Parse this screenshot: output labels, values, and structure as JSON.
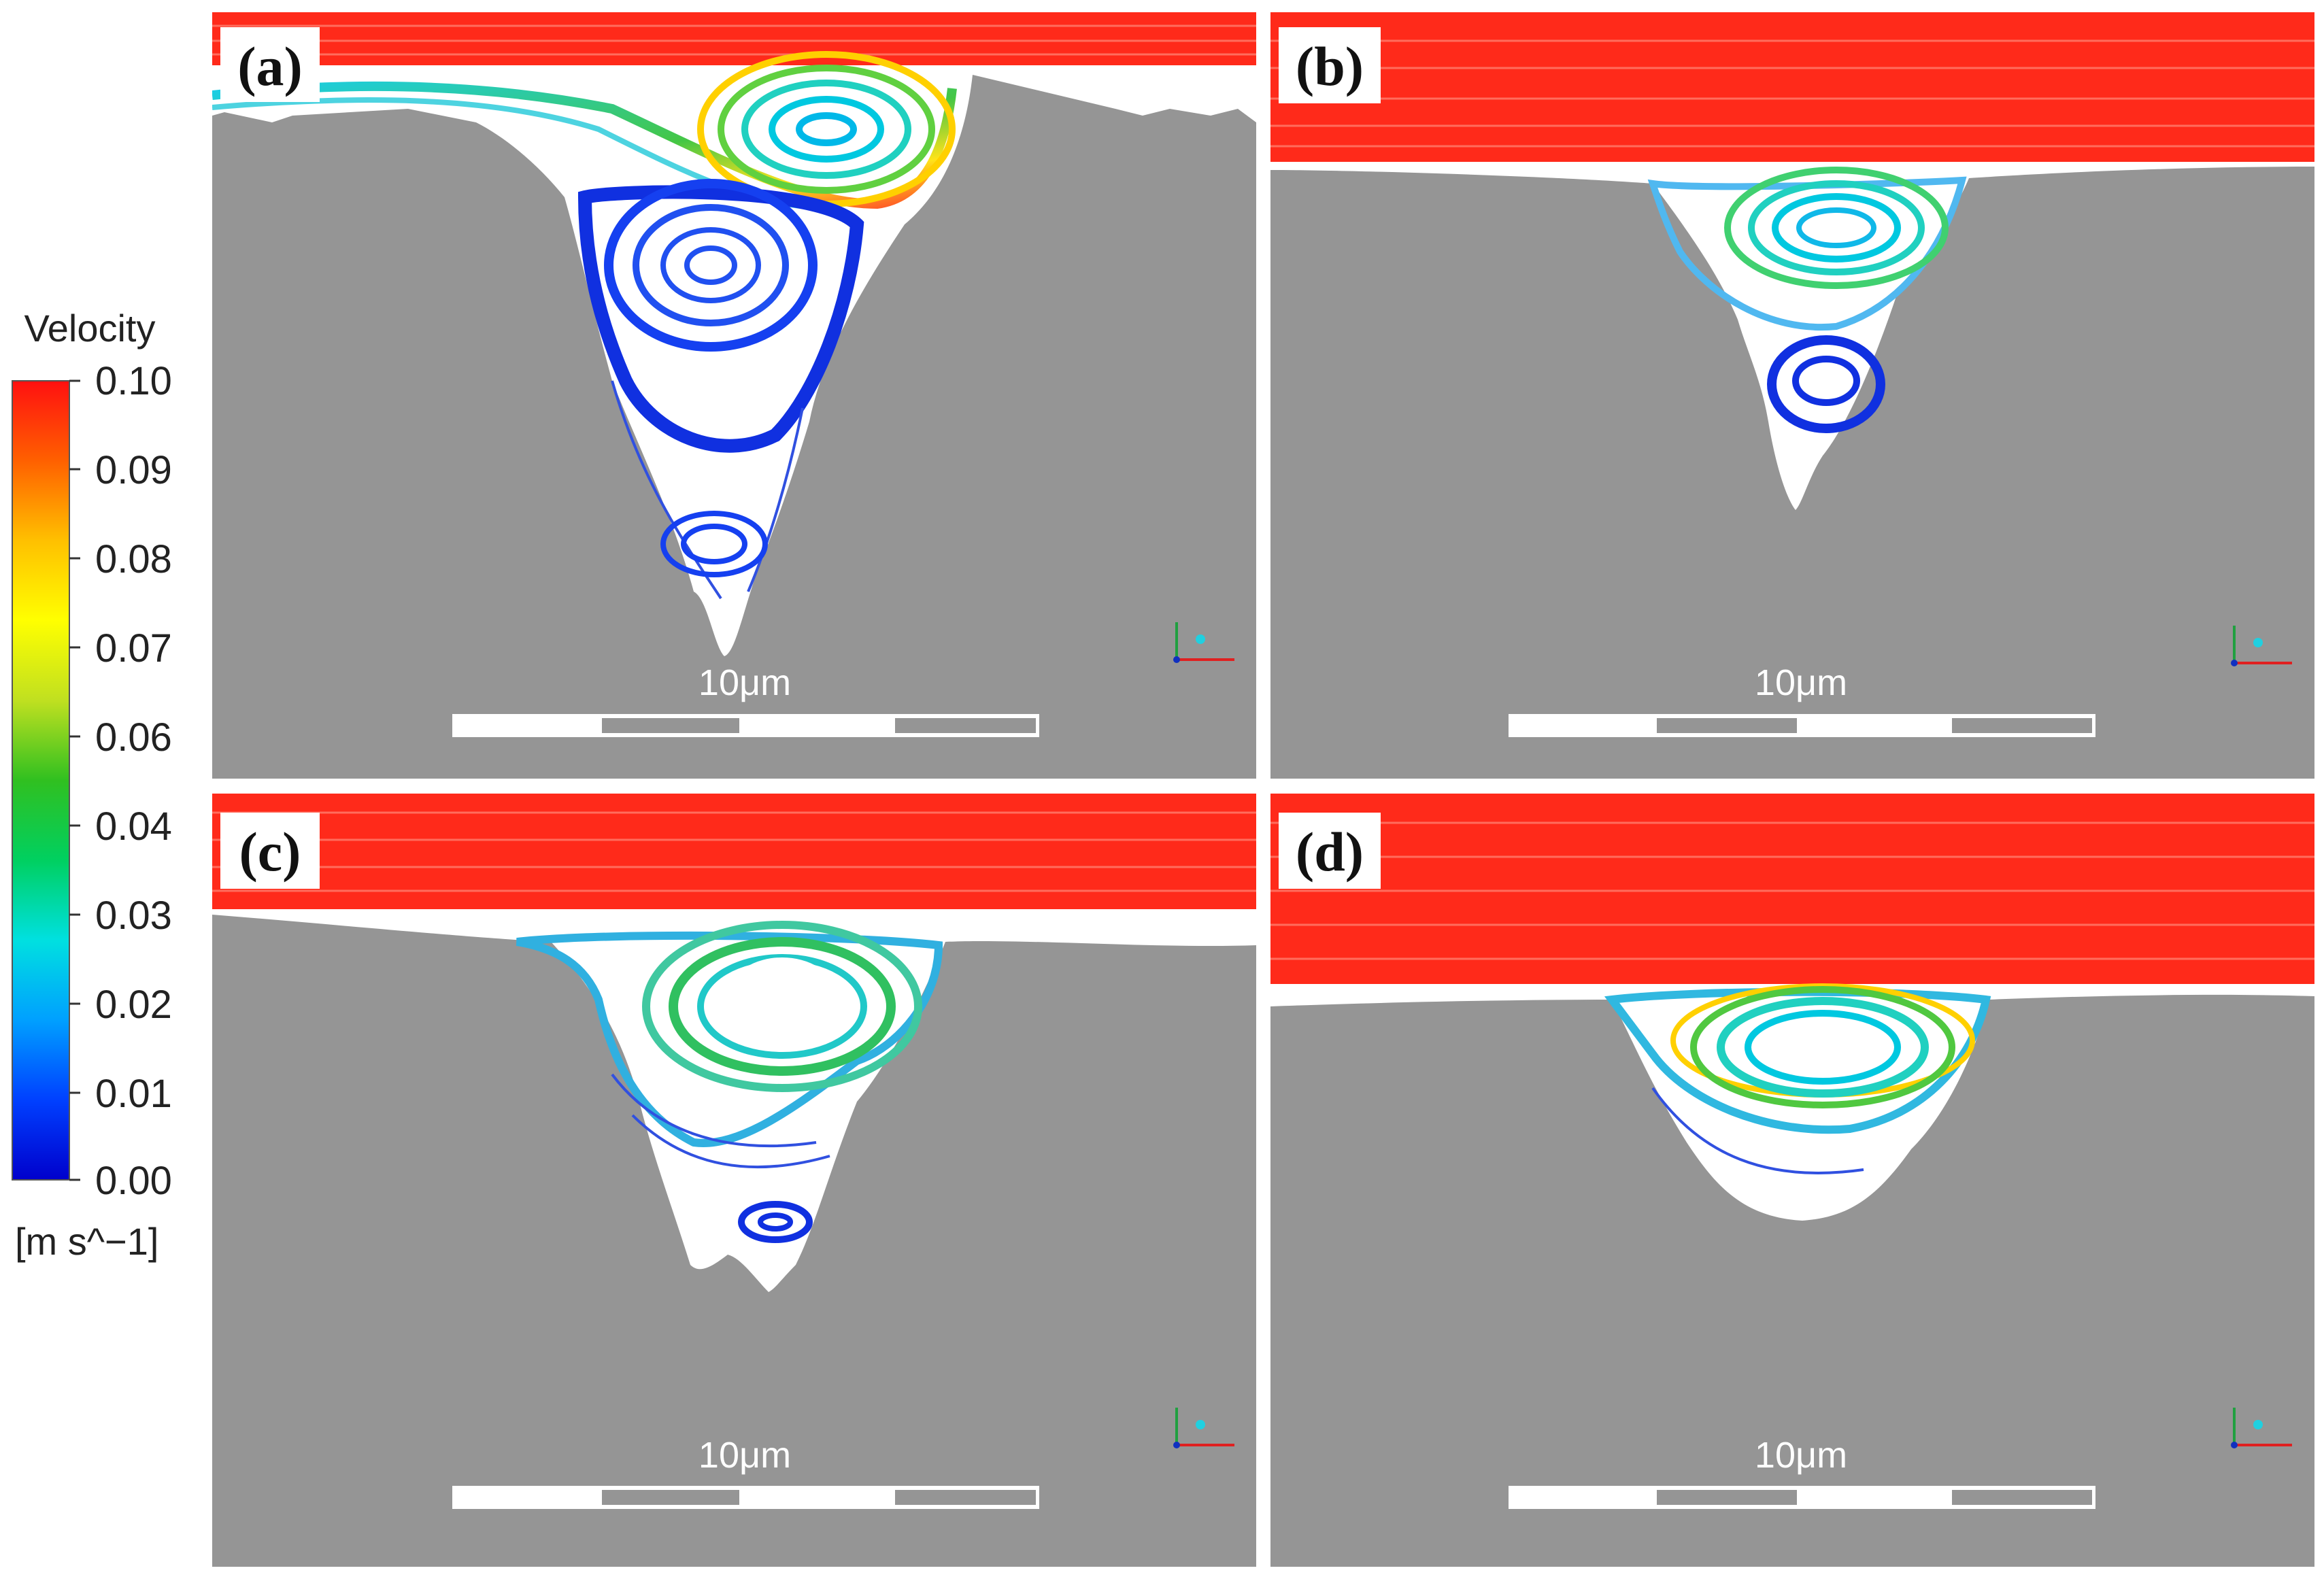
{
  "colorbar": {
    "title": "Velocity",
    "unit": "[m s^−1]",
    "ticks": [
      "0.10",
      "0.09",
      "0.08",
      "0.07",
      "0.06",
      "0.04",
      "0.03",
      "0.02",
      "0.01",
      "0.00"
    ],
    "colors": [
      "#0000cc",
      "#0040ff",
      "#00a0ff",
      "#00e0e0",
      "#00d060",
      "#30c020",
      "#c0e020",
      "#ffff00",
      "#ffc000",
      "#ff6000",
      "#ff1010"
    ]
  },
  "background_color": "#959595",
  "flow_color": "#ff2a1a",
  "panels": [
    {
      "label": "(a)",
      "scale_text": "10μm"
    },
    {
      "label": "(b)",
      "scale_text": "10μm"
    },
    {
      "label": "(c)",
      "scale_text": "10μm"
    },
    {
      "label": "(d)",
      "scale_text": "10μm"
    }
  ]
}
